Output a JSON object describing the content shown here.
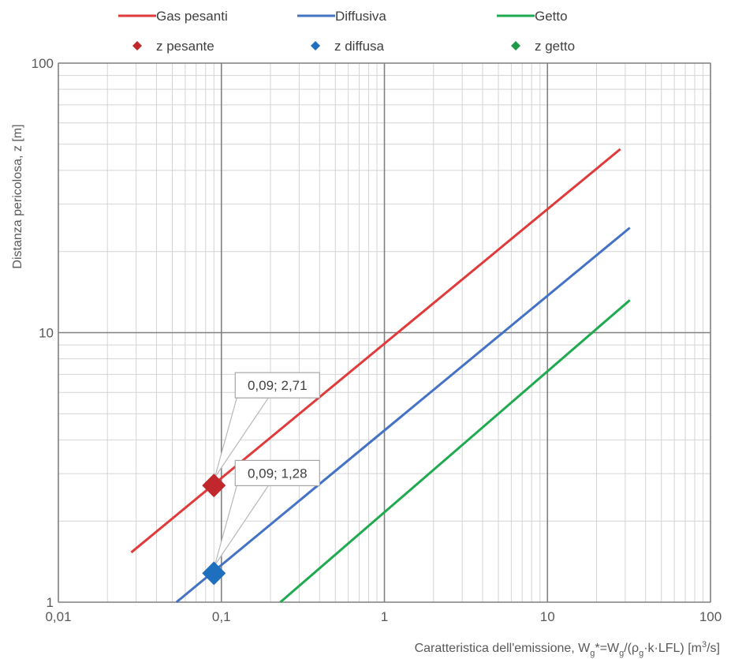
{
  "chart_data": {
    "type": "line",
    "xscale": "log",
    "yscale": "log",
    "xlim": [
      0.01,
      100
    ],
    "ylim": [
      1,
      100
    ],
    "grid": true,
    "legend_position": "top",
    "xlabel": {
      "main": "Caratteristica dell'emissione, W",
      "sub1": "g",
      "mid1": "*=W",
      "sub2": "g",
      "mid2": "/(ρ",
      "sub3": "g",
      "mid3": "·k·LFL) [m",
      "sup": "3",
      "end": "/s]"
    },
    "ylabel": "Distanza pericolosa, z [m]",
    "x_ticks": [
      "0,01",
      "0,1",
      "1",
      "10",
      "100"
    ],
    "x_tick_values": [
      0.01,
      0.1,
      1,
      10,
      100
    ],
    "y_ticks": [
      "1",
      "10",
      "100"
    ],
    "y_tick_values": [
      1,
      10,
      100
    ],
    "series": [
      {
        "name": "Gas pesanti",
        "color": "#e03a3a",
        "x": [
          0.028,
          28
        ],
        "y": [
          1.53,
          48
        ]
      },
      {
        "name": "Diffusiva",
        "color": "#4472c4",
        "x": [
          0.053,
          32
        ],
        "y": [
          1.0,
          24.5
        ]
      },
      {
        "name": "Getto",
        "color": "#1faa50",
        "x": [
          0.23,
          32
        ],
        "y": [
          1.0,
          13.2
        ]
      }
    ],
    "points": [
      {
        "name": "z pesante",
        "color": "#c0282d",
        "x": 0.09,
        "y": 2.71,
        "label": "0,09; 2,71"
      },
      {
        "name": "z diffusa",
        "color": "#1f6fbf",
        "x": 0.09,
        "y": 1.28,
        "label": "0,09; 1,28"
      },
      {
        "name": "z getto",
        "color": "#1e9a48",
        "x": null,
        "y": null,
        "label": ""
      }
    ]
  }
}
